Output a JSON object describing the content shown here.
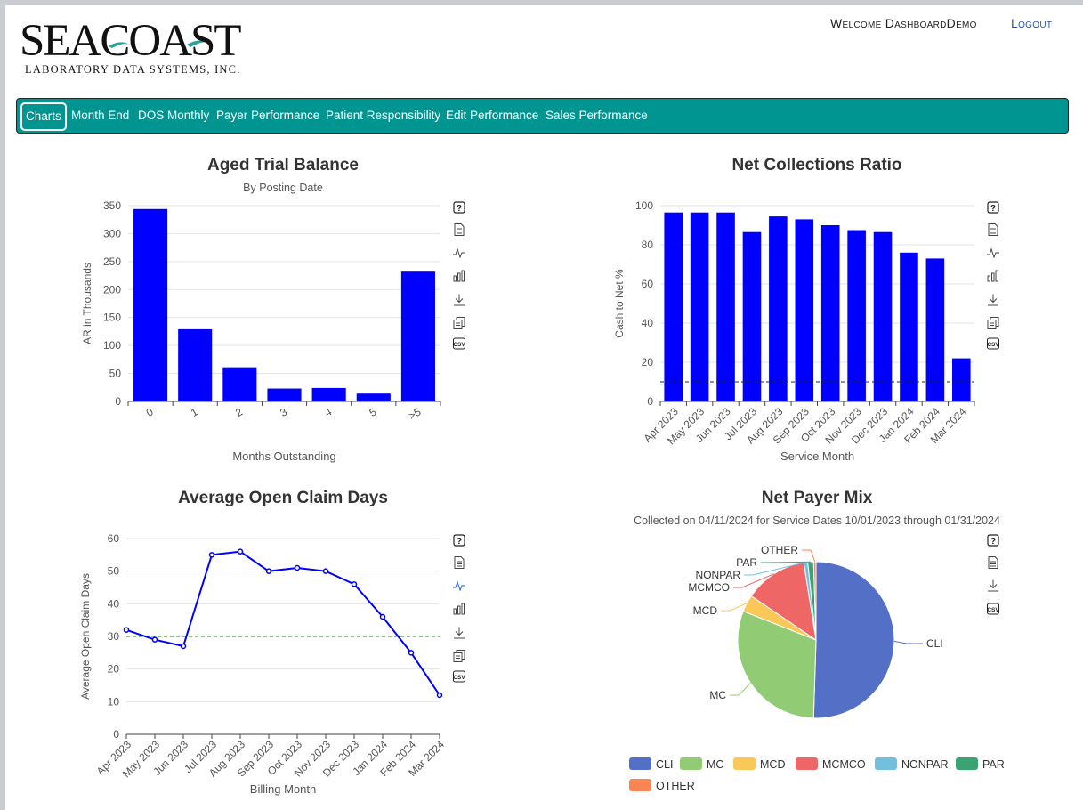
{
  "header": {
    "logo_text": "SEACOAST",
    "logo_tagline": "LABORATORY DATA SYSTEMS, INC.",
    "welcome_text": "Welcome DashboardDemo",
    "logout_label": "Logout"
  },
  "nav": {
    "items": [
      "Charts",
      "Month End",
      "DOS Monthly",
      "Payer Performance",
      "Patient Responsibility",
      "Edit Performance",
      "Sales Performance"
    ],
    "active": "Charts",
    "color": "#009591"
  },
  "panels": {
    "aged": {
      "title": "Aged Trial Balance",
      "subtitle": "By Posting Date"
    },
    "ncr": {
      "title": "Net Collections Ratio"
    },
    "aocd": {
      "title": "Average Open Claim Days"
    },
    "npm": {
      "title": "Net Payer Mix",
      "subtitle": "Collected on 04/11/2024 for Service Dates 10/01/2023 through 01/31/2024"
    }
  },
  "toolbox_icons": [
    "help-icon",
    "data-view-icon",
    "line-chart-icon",
    "bar-chart-icon",
    "download-icon",
    "copy-icon",
    "csv-icon"
  ],
  "chart_data": [
    {
      "id": "aged-trial-balance",
      "type": "bar",
      "title": "Aged Trial Balance",
      "subtitle": "By Posting Date",
      "xlabel": "Months Outstanding",
      "ylabel": "AR in Thousands",
      "categories": [
        "0",
        "1",
        "2",
        "3",
        "4",
        "5",
        ">5"
      ],
      "values": [
        344,
        129,
        61,
        23,
        24,
        14,
        232
      ],
      "ylim": [
        0,
        350
      ],
      "yticks": [
        0,
        50,
        100,
        150,
        200,
        250,
        300,
        350
      ],
      "grid": true,
      "color": "#0000ff"
    },
    {
      "id": "net-collections-ratio",
      "type": "bar",
      "title": "Net Collections Ratio",
      "xlabel": "Service Month",
      "ylabel": "Cash to Net %",
      "categories": [
        "Apr 2023",
        "May 2023",
        "Jun 2023",
        "Jul 2023",
        "Aug 2023",
        "Sep 2023",
        "Oct 2023",
        "Nov 2023",
        "Dec 2023",
        "Jan 2024",
        "Feb 2024",
        "Mar 2024"
      ],
      "values": [
        96.5,
        96.5,
        96.5,
        86.5,
        94.5,
        93,
        90,
        87.5,
        86.5,
        76,
        73,
        22
      ],
      "ylim": [
        0,
        100
      ],
      "yticks": [
        0,
        20,
        40,
        60,
        80,
        100
      ],
      "reference_line": 10,
      "grid": true,
      "color": "#0000ff"
    },
    {
      "id": "average-open-claim-days",
      "type": "line",
      "title": "Average Open Claim Days",
      "xlabel": "Billing Month",
      "ylabel": "Average Open Claim Days",
      "categories": [
        "Apr 2023",
        "May 2023",
        "Jun 2023",
        "Jul 2023",
        "Aug 2023",
        "Sep 2023",
        "Oct 2023",
        "Nov 2023",
        "Dec 2023",
        "Jan 2024",
        "Feb 2024",
        "Mar 2024"
      ],
      "values": [
        32,
        29,
        27,
        55,
        56,
        50,
        51,
        50,
        46,
        36,
        25,
        12
      ],
      "ylim": [
        0,
        60
      ],
      "yticks": [
        0,
        10,
        20,
        30,
        40,
        50,
        60
      ],
      "reference_line": 30,
      "grid": true,
      "color": "#0000ff"
    },
    {
      "id": "net-payer-mix",
      "type": "pie",
      "title": "Net Payer Mix",
      "subtitle": "Collected on 04/11/2024 for Service Dates 10/01/2023 through 01/31/2024",
      "legend": "bottom",
      "slices": [
        {
          "name": "CLI",
          "value": 50.5,
          "color": "#5470c6"
        },
        {
          "name": "MC",
          "value": 30.5,
          "color": "#91cc75"
        },
        {
          "name": "MCD",
          "value": 3.5,
          "color": "#fac858"
        },
        {
          "name": "MCMCO",
          "value": 13,
          "color": "#ee6666"
        },
        {
          "name": "NONPAR",
          "value": 0.8,
          "color": "#73c0de"
        },
        {
          "name": "PAR",
          "value": 1.2,
          "color": "#3ba272"
        },
        {
          "name": "OTHER",
          "value": 0.5,
          "color": "#fc8452"
        }
      ]
    }
  ]
}
